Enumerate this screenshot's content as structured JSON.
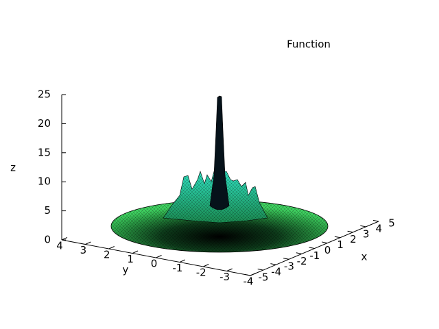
{
  "chart_data": {
    "type": "surface",
    "title": "Function",
    "xlabel": "x",
    "ylabel": "y",
    "zlabel": "z",
    "xlim": [
      -5,
      5
    ],
    "xticks": [
      -5,
      -4,
      -3,
      -2,
      -1,
      0,
      1,
      2,
      3,
      4,
      5
    ],
    "ylim": [
      -4,
      4
    ],
    "yticks": [
      4,
      3,
      2,
      1,
      0,
      -1,
      -2,
      -3,
      -4
    ],
    "zlim": [
      0,
      25
    ],
    "zticks": [
      0,
      5,
      10,
      15,
      20,
      25
    ]
  }
}
